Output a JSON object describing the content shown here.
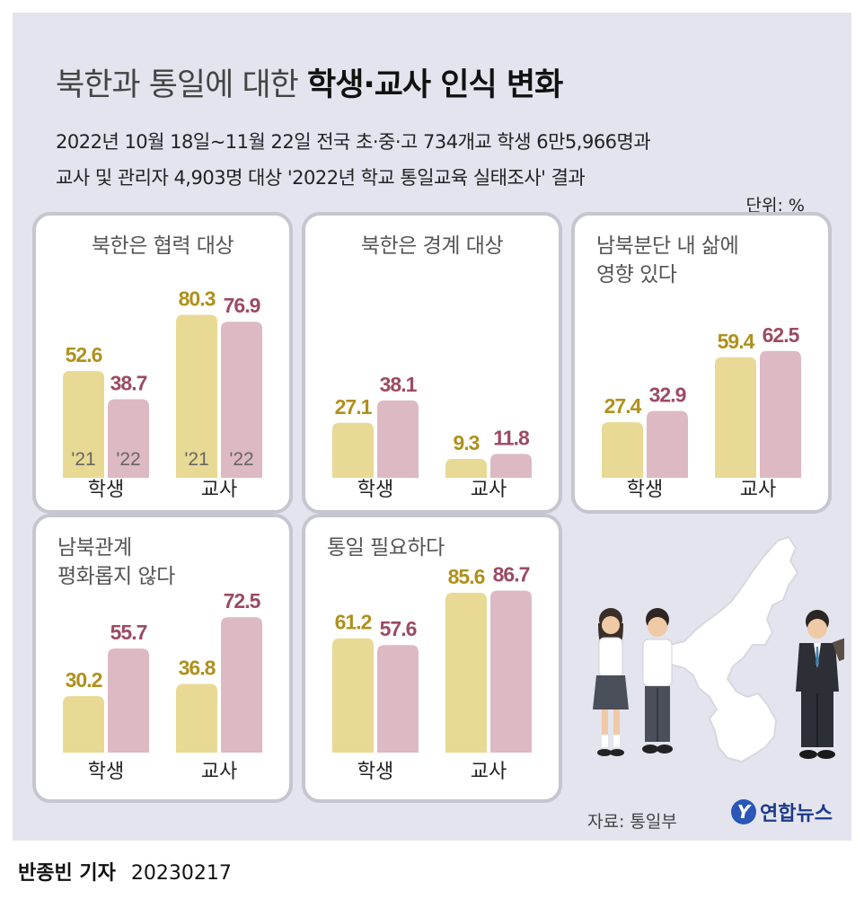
{
  "header": {
    "title_normal": "북한과 통일에 대한",
    "title_bold": "학생·교사 인식 변화",
    "subtitle_1": "2022년 10월 18일~11월 22일 전국 초·중·고 734개교 학생 6만5,966명과",
    "subtitle_2": "교사 및 관리자 4,903명 대상 '2022년 학교 통일교육 실태조사' 결과",
    "unit": "단위: %"
  },
  "chart_data": [
    {
      "type": "bar",
      "title": "북한은 협력 대상",
      "categories": [
        "학생",
        "교사"
      ],
      "series_labels": [
        "'21",
        "'22"
      ],
      "series": [
        {
          "name": "2021",
          "values": [
            52.6,
            80.3
          ]
        },
        {
          "name": "2022",
          "values": [
            38.7,
            76.9
          ]
        }
      ],
      "ylim": [
        0,
        100
      ]
    },
    {
      "type": "bar",
      "title": "북한은 경계 대상",
      "categories": [
        "학생",
        "교사"
      ],
      "series": [
        {
          "name": "2021",
          "values": [
            27.1,
            9.3
          ]
        },
        {
          "name": "2022",
          "values": [
            38.1,
            11.8
          ]
        }
      ],
      "ylim": [
        0,
        100
      ]
    },
    {
      "type": "bar",
      "title_lines": [
        "남북분단 내 삶에",
        "영향 있다"
      ],
      "categories": [
        "학생",
        "교사"
      ],
      "series": [
        {
          "name": "2021",
          "values": [
            27.4,
            59.4
          ]
        },
        {
          "name": "2022",
          "values": [
            32.9,
            62.5
          ]
        }
      ],
      "ylim": [
        0,
        100
      ]
    },
    {
      "type": "bar",
      "title_lines": [
        "남북관계",
        "평화롭지 않다"
      ],
      "categories": [
        "학생",
        "교사"
      ],
      "series": [
        {
          "name": "2021",
          "values": [
            30.2,
            36.8
          ]
        },
        {
          "name": "2022",
          "values": [
            55.7,
            72.5
          ]
        }
      ],
      "ylim": [
        0,
        100
      ]
    },
    {
      "type": "bar",
      "title": "통일 필요하다",
      "categories": [
        "학생",
        "교사"
      ],
      "series": [
        {
          "name": "2021",
          "values": [
            61.2,
            85.6
          ]
        },
        {
          "name": "2022",
          "values": [
            57.6,
            86.7
          ]
        }
      ],
      "ylim": [
        0,
        100
      ]
    }
  ],
  "colors": {
    "bar_2021": "#e8d994",
    "bar_2022": "#ddb9c3",
    "label_2021": "#b0901c",
    "label_2022": "#9c4a62"
  },
  "footer": {
    "source": "자료: 통일부",
    "logo": "연합뉴스",
    "logo_mark": "Y",
    "reporter": "반종빈 기자",
    "date": "20230217"
  }
}
